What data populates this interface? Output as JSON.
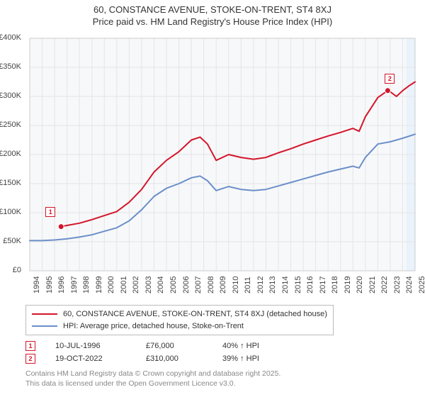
{
  "title_line1": "60, CONSTANCE AVENUE, STOKE-ON-TRENT, ST4 8XJ",
  "title_line2": "Price paid vs. HM Land Registry's House Price Index (HPI)",
  "chart": {
    "type": "line",
    "background_color": "#ffffff",
    "plot_background_color": "#f7f8f9",
    "grid_color": "#e3e5e8",
    "axis_color": "#cccccc",
    "ylim": [
      0,
      400000
    ],
    "ytick_step": 50000,
    "yticks": [
      "£0",
      "£50K",
      "£100K",
      "£150K",
      "£200K",
      "£250K",
      "£300K",
      "£350K",
      "£400K"
    ],
    "xlim": [
      1994,
      2025
    ],
    "xticks": [
      1994,
      1995,
      1996,
      1997,
      1998,
      1999,
      2000,
      2001,
      2002,
      2003,
      2004,
      2005,
      2006,
      2007,
      2008,
      2009,
      2010,
      2011,
      2012,
      2013,
      2014,
      2015,
      2016,
      2017,
      2018,
      2019,
      2020,
      2021,
      2022,
      2023,
      2024,
      2025
    ],
    "label_fontsize": 11,
    "title_fontsize": 13,
    "line_width": 2,
    "present_band_color": "#eaf2fb",
    "present_band_start": 2024.3,
    "series": [
      {
        "name": "constance",
        "label": "60, CONSTANCE AVENUE, STOKE-ON-TRENT, ST4 8XJ (detached house)",
        "color": "#d4152a",
        "data": [
          [
            1996.52,
            76000
          ],
          [
            1997,
            78000
          ],
          [
            1998,
            82000
          ],
          [
            1999,
            88000
          ],
          [
            2000,
            95000
          ],
          [
            2001,
            102000
          ],
          [
            2002,
            118000
          ],
          [
            2003,
            140000
          ],
          [
            2004,
            170000
          ],
          [
            2005,
            190000
          ],
          [
            2006,
            205000
          ],
          [
            2007,
            225000
          ],
          [
            2007.7,
            230000
          ],
          [
            2008.3,
            218000
          ],
          [
            2009,
            190000
          ],
          [
            2010,
            200000
          ],
          [
            2011,
            195000
          ],
          [
            2012,
            192000
          ],
          [
            2013,
            195000
          ],
          [
            2014,
            203000
          ],
          [
            2015,
            210000
          ],
          [
            2016,
            218000
          ],
          [
            2017,
            225000
          ],
          [
            2018,
            232000
          ],
          [
            2019,
            238000
          ],
          [
            2020,
            245000
          ],
          [
            2020.5,
            240000
          ],
          [
            2021,
            265000
          ],
          [
            2022,
            298000
          ],
          [
            2022.8,
            310000
          ],
          [
            2023,
            308000
          ],
          [
            2023.5,
            300000
          ],
          [
            2024,
            310000
          ],
          [
            2024.5,
            318000
          ],
          [
            2025,
            325000
          ]
        ]
      },
      {
        "name": "hpi",
        "label": "HPI: Average price, detached house, Stoke-on-Trent",
        "color": "#6b8fc9",
        "data": [
          [
            1994,
            52000
          ],
          [
            1995,
            52000
          ],
          [
            1996,
            53000
          ],
          [
            1997,
            55000
          ],
          [
            1998,
            58000
          ],
          [
            1999,
            62000
          ],
          [
            2000,
            68000
          ],
          [
            2001,
            74000
          ],
          [
            2002,
            86000
          ],
          [
            2003,
            105000
          ],
          [
            2004,
            128000
          ],
          [
            2005,
            142000
          ],
          [
            2006,
            150000
          ],
          [
            2007,
            160000
          ],
          [
            2007.7,
            163000
          ],
          [
            2008.3,
            155000
          ],
          [
            2009,
            138000
          ],
          [
            2010,
            145000
          ],
          [
            2011,
            140000
          ],
          [
            2012,
            138000
          ],
          [
            2013,
            140000
          ],
          [
            2014,
            146000
          ],
          [
            2015,
            152000
          ],
          [
            2016,
            158000
          ],
          [
            2017,
            164000
          ],
          [
            2018,
            170000
          ],
          [
            2019,
            175000
          ],
          [
            2020,
            180000
          ],
          [
            2020.5,
            177000
          ],
          [
            2021,
            195000
          ],
          [
            2022,
            218000
          ],
          [
            2023,
            222000
          ],
          [
            2024,
            228000
          ],
          [
            2025,
            235000
          ]
        ]
      }
    ],
    "point_markers": [
      {
        "id": "1",
        "x": 1996.52,
        "y": 76000,
        "color": "#d4152a",
        "badge_offset_x": -22,
        "badge_offset_y": -28
      },
      {
        "id": "2",
        "x": 2022.8,
        "y": 310000,
        "color": "#d4152a",
        "badge_offset_x": -4,
        "badge_offset_y": -24
      }
    ]
  },
  "legend": {
    "items": [
      {
        "color": "#d4152a",
        "label": "60, CONSTANCE AVENUE, STOKE-ON-TRENT, ST4 8XJ (detached house)"
      },
      {
        "color": "#6b8fc9",
        "label": "HPI: Average price, detached house, Stoke-on-Trent"
      }
    ]
  },
  "marker_rows": [
    {
      "id": "1",
      "color": "#d4152a",
      "date": "10-JUL-1996",
      "price": "£76,000",
      "delta": "40% ↑ HPI"
    },
    {
      "id": "2",
      "color": "#d4152a",
      "date": "19-OCT-2022",
      "price": "£310,000",
      "delta": "39% ↑ HPI"
    }
  ],
  "copyright_line1": "Contains HM Land Registry data © Crown copyright and database right 2025.",
  "copyright_line2": "This data is licensed under the Open Government Licence v3.0."
}
